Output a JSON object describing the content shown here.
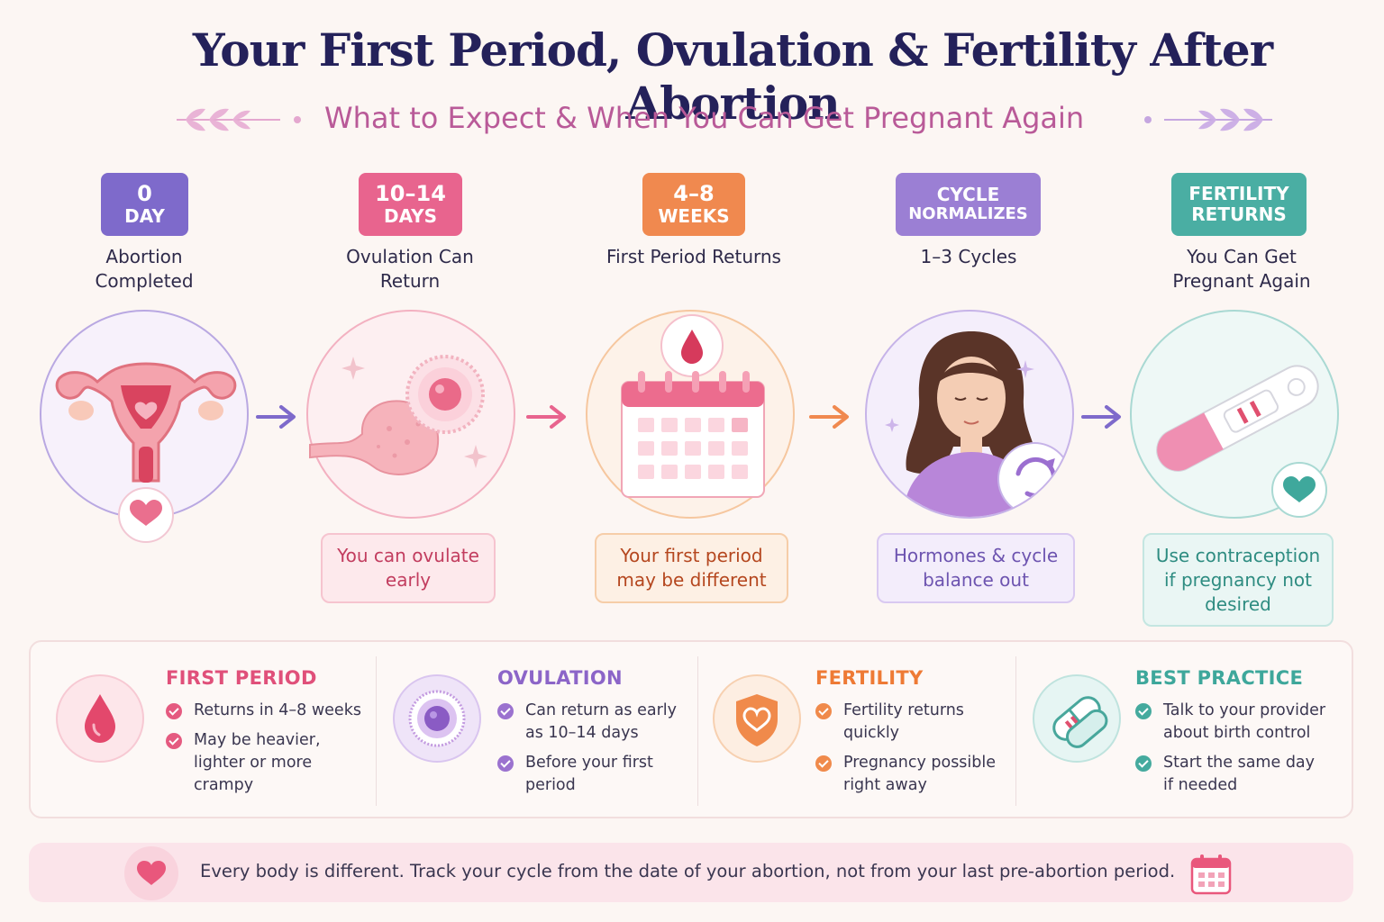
{
  "header": {
    "title": "Your First Period, Ovulation & Fertility After Abortion",
    "subtitle": "What to Expect & When You Can Get Pregnant Again"
  },
  "colors": {
    "purple": "#7e6acb",
    "pink": "#e8648e",
    "orange": "#f0894f",
    "lavender": "#9b7fd4",
    "teal": "#4aaea3",
    "navy": "#24215a"
  },
  "timeline": [
    {
      "badge_line1": "0",
      "badge_line2": "DAY",
      "label": "Abortion Completed",
      "icon": "uterus-icon",
      "note": ""
    },
    {
      "badge_line1": "10–14",
      "badge_line2": "DAYS",
      "label": "Ovulation Can Return",
      "icon": "ovary-egg-icon",
      "note": "You can ovulate early"
    },
    {
      "badge_line1": "4–8",
      "badge_line2": "WEEKS",
      "label": "First Period Returns",
      "icon": "calendar-drop-icon",
      "note": "Your first period may be different"
    },
    {
      "badge_line1": "CYCLE",
      "badge_line2": "NORMALIZES",
      "label": "1–3 Cycles",
      "icon": "woman-cycle-icon",
      "note": "Hormones & cycle balance out"
    },
    {
      "badge_line1": "FERTILITY",
      "badge_line2": "RETURNS",
      "label": "You Can Get Pregnant Again",
      "icon": "pregnancy-test-icon",
      "note": "Use contraception if pregnancy not desired"
    }
  ],
  "info": [
    {
      "heading": "FIRST PERIOD",
      "icon": "blood-drop-icon",
      "items": [
        "Returns in 4–8 weeks",
        "May be heavier, lighter or more crampy"
      ]
    },
    {
      "heading": "OVULATION",
      "icon": "egg-cell-icon",
      "items": [
        "Can return as early as 10–14 days",
        "Before your first period"
      ]
    },
    {
      "heading": "FERTILITY",
      "icon": "heart-shield-icon",
      "items": [
        "Fertility returns quickly",
        "Pregnancy possible right away"
      ]
    },
    {
      "heading": "BEST PRACTICE",
      "icon": "contraceptive-icon",
      "items": [
        "Talk to your provider about birth control",
        "Start the same day if needed"
      ]
    }
  ],
  "footer": {
    "text": "Every body is different. Track your cycle from the date of your abortion, not from your last pre-abortion period."
  }
}
